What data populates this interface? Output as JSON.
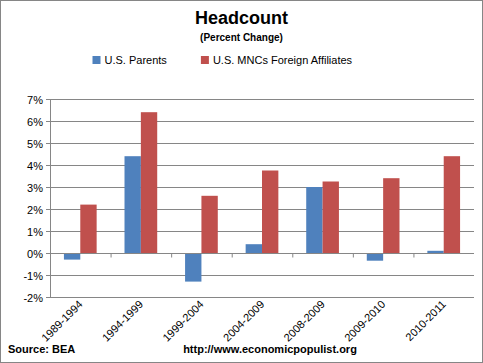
{
  "chart_data": {
    "type": "bar",
    "title": "Headcount",
    "subtitle": "(Percent Change)",
    "categories": [
      "1989-1994",
      "1994-1999",
      "1999-2004",
      "2004-2009",
      "2008-2009",
      "2009-2010",
      "2010-2011"
    ],
    "series": [
      {
        "name": "U.S. Parents",
        "color": "#4f81bd",
        "values": [
          -0.3,
          4.4,
          -1.3,
          0.4,
          3.0,
          -0.35,
          0.1
        ]
      },
      {
        "name": "U.S. MNCs Foreign Affiliates",
        "color": "#c0504d",
        "values": [
          2.2,
          6.4,
          2.6,
          3.75,
          3.25,
          3.4,
          4.4
        ]
      }
    ],
    "ylim": [
      -2,
      7
    ],
    "yticks": [
      {
        "value": -2,
        "label": "-2%"
      },
      {
        "value": -1,
        "label": "-1%"
      },
      {
        "value": 0,
        "label": "0%"
      },
      {
        "value": 1,
        "label": "1%"
      },
      {
        "value": 2,
        "label": "2%"
      },
      {
        "value": 3,
        "label": "3%"
      },
      {
        "value": 4,
        "label": "4%"
      },
      {
        "value": 5,
        "label": "5%"
      },
      {
        "value": 6,
        "label": "6%"
      },
      {
        "value": 7,
        "label": "7%"
      }
    ],
    "grid": true,
    "legend": "top",
    "annotations": [
      "Source: BEA",
      "http://www.economicpopulist.org"
    ]
  }
}
